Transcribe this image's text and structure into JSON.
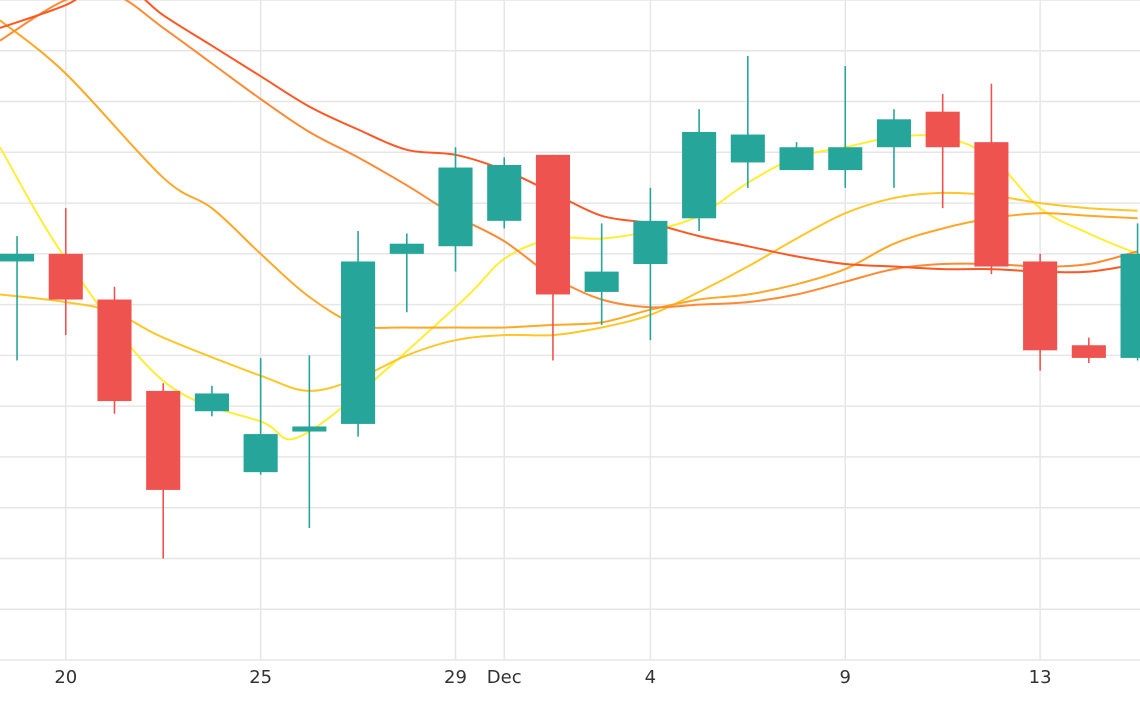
{
  "chart_data": {
    "type": "candlestick",
    "x_ticks": [
      {
        "pos": 0,
        "label": "20"
      },
      {
        "pos": 4,
        "label": "25"
      },
      {
        "pos": 8,
        "label": "29"
      },
      {
        "pos": 9,
        "label": "Dec"
      },
      {
        "pos": 12,
        "label": "4"
      },
      {
        "pos": 16,
        "label": "9"
      },
      {
        "pos": 20,
        "label": "13"
      }
    ],
    "ylim": [
      0,
      13
    ],
    "x_range": [
      -1.35,
      22.05
    ],
    "grid": true,
    "colors": {
      "up": "#26a69a",
      "down": "#ef5350"
    },
    "candles": [
      {
        "i": -1,
        "o": 7.85,
        "h": 8.35,
        "l": 5.9,
        "c": 8.0
      },
      {
        "i": 0,
        "o": 8.0,
        "h": 8.9,
        "l": 6.4,
        "c": 7.1
      },
      {
        "i": 1,
        "o": 7.1,
        "h": 7.35,
        "l": 4.85,
        "c": 5.1
      },
      {
        "i": 2,
        "o": 5.3,
        "h": 5.45,
        "l": 2.0,
        "c": 3.35
      },
      {
        "i": 3,
        "o": 4.9,
        "h": 5.4,
        "l": 4.8,
        "c": 5.25
      },
      {
        "i": 4,
        "o": 3.7,
        "h": 5.95,
        "l": 3.65,
        "c": 4.45
      },
      {
        "i": 5,
        "o": 4.5,
        "h": 6.0,
        "l": 2.6,
        "c": 4.6
      },
      {
        "i": 6,
        "o": 4.65,
        "h": 8.45,
        "l": 4.4,
        "c": 7.85
      },
      {
        "i": 7,
        "o": 8.0,
        "h": 8.4,
        "l": 6.85,
        "c": 8.2
      },
      {
        "i": 8,
        "o": 8.15,
        "h": 10.1,
        "l": 7.65,
        "c": 9.7
      },
      {
        "i": 9,
        "o": 8.65,
        "h": 9.9,
        "l": 8.5,
        "c": 9.75
      },
      {
        "i": 10,
        "o": 9.95,
        "h": 9.95,
        "l": 5.9,
        "c": 7.2
      },
      {
        "i": 11,
        "o": 7.25,
        "h": 8.6,
        "l": 6.6,
        "c": 7.65
      },
      {
        "i": 12,
        "o": 7.8,
        "h": 9.3,
        "l": 6.3,
        "c": 8.65
      },
      {
        "i": 13,
        "o": 8.7,
        "h": 10.85,
        "l": 8.45,
        "c": 10.4
      },
      {
        "i": 14,
        "o": 9.8,
        "h": 11.9,
        "l": 9.3,
        "c": 10.35
      },
      {
        "i": 15,
        "o": 9.65,
        "h": 10.2,
        "l": 9.65,
        "c": 10.1
      },
      {
        "i": 16,
        "o": 9.65,
        "h": 11.7,
        "l": 9.3,
        "c": 10.1
      },
      {
        "i": 17,
        "o": 10.1,
        "h": 10.85,
        "l": 9.3,
        "c": 10.65
      },
      {
        "i": 18,
        "o": 10.8,
        "h": 11.15,
        "l": 8.9,
        "c": 10.1
      },
      {
        "i": 19,
        "o": 10.2,
        "h": 11.35,
        "l": 7.6,
        "c": 7.75
      },
      {
        "i": 20,
        "o": 7.85,
        "h": 8.0,
        "l": 5.7,
        "c": 6.1
      },
      {
        "i": 21,
        "o": 6.2,
        "h": 6.35,
        "l": 5.85,
        "c": 5.95
      },
      {
        "i": 22,
        "o": 5.95,
        "h": 8.6,
        "l": 5.9,
        "c": 8.0
      }
    ],
    "series": [
      {
        "color": "#ffee33",
        "points": [
          [
            -1.35,
            10.1
          ],
          [
            0,
            7.9
          ],
          [
            2,
            5.5
          ],
          [
            4,
            4.7
          ],
          [
            5,
            4.5
          ],
          [
            8,
            6.95
          ],
          [
            9,
            7.9
          ],
          [
            10,
            8.3
          ],
          [
            11,
            8.3
          ],
          [
            12,
            8.45
          ],
          [
            13,
            8.75
          ],
          [
            14,
            9.4
          ],
          [
            15,
            9.9
          ],
          [
            16,
            10.1
          ],
          [
            17,
            10.3
          ],
          [
            18,
            10.3
          ],
          [
            19,
            9.9
          ],
          [
            20,
            8.9
          ],
          [
            21,
            8.4
          ],
          [
            22,
            8.0
          ]
        ]
      },
      {
        "color": "#ffc629",
        "points": [
          [
            -1.35,
            7.2
          ],
          [
            0,
            7.05
          ],
          [
            1,
            6.85
          ],
          [
            2,
            6.35
          ],
          [
            4,
            5.6
          ],
          [
            5,
            5.3
          ],
          [
            6,
            5.55
          ],
          [
            7,
            6.0
          ],
          [
            8,
            6.3
          ],
          [
            9,
            6.4
          ],
          [
            10,
            6.4
          ],
          [
            11,
            6.55
          ],
          [
            12,
            6.8
          ],
          [
            13,
            7.25
          ],
          [
            14,
            7.75
          ],
          [
            15,
            8.3
          ],
          [
            16,
            8.8
          ],
          [
            17,
            9.1
          ],
          [
            18,
            9.2
          ],
          [
            19,
            9.15
          ],
          [
            20,
            9.0
          ],
          [
            21,
            8.9
          ],
          [
            22,
            8.85
          ]
        ]
      },
      {
        "color": "#ffa726",
        "points": [
          [
            -1.35,
            12.6
          ],
          [
            0,
            11.55
          ],
          [
            2,
            9.5
          ],
          [
            3,
            8.9
          ],
          [
            4,
            8.0
          ],
          [
            5,
            7.15
          ],
          [
            6,
            6.6
          ],
          [
            7,
            6.55
          ],
          [
            8,
            6.55
          ],
          [
            9,
            6.55
          ],
          [
            10,
            6.6
          ],
          [
            11,
            6.65
          ],
          [
            12,
            6.9
          ],
          [
            13,
            7.1
          ],
          [
            14,
            7.2
          ],
          [
            15,
            7.4
          ],
          [
            16,
            7.7
          ],
          [
            17,
            8.2
          ],
          [
            18,
            8.5
          ],
          [
            19,
            8.7
          ],
          [
            20,
            8.8
          ],
          [
            21,
            8.75
          ],
          [
            22,
            8.7
          ]
        ]
      },
      {
        "color": "#ff8a33",
        "points": [
          [
            -1.35,
            12.2
          ],
          [
            0,
            13.0
          ],
          [
            1,
            13.1
          ],
          [
            2,
            12.45
          ],
          [
            3,
            11.75
          ],
          [
            4,
            11.05
          ],
          [
            5,
            10.4
          ],
          [
            6,
            9.9
          ],
          [
            7,
            9.35
          ],
          [
            8,
            8.75
          ],
          [
            9,
            8.25
          ],
          [
            10,
            7.55
          ],
          [
            11,
            7.1
          ],
          [
            12,
            6.95
          ],
          [
            13,
            7.0
          ],
          [
            14,
            7.05
          ],
          [
            15,
            7.2
          ],
          [
            16,
            7.45
          ],
          [
            17,
            7.7
          ],
          [
            18,
            7.8
          ],
          [
            19,
            7.8
          ],
          [
            20,
            7.75
          ],
          [
            21,
            7.8
          ],
          [
            22,
            8.05
          ]
        ]
      },
      {
        "color": "#ff5722",
        "points": [
          [
            -1.35,
            12.45
          ],
          [
            0,
            12.9
          ],
          [
            1,
            13.4
          ],
          [
            2,
            12.7
          ],
          [
            3,
            12.1
          ],
          [
            4,
            11.5
          ],
          [
            5,
            10.9
          ],
          [
            6,
            10.45
          ],
          [
            7,
            10.05
          ],
          [
            8,
            9.95
          ],
          [
            9,
            9.65
          ],
          [
            10,
            9.2
          ],
          [
            11,
            8.75
          ],
          [
            12,
            8.6
          ],
          [
            13,
            8.35
          ],
          [
            14,
            8.15
          ],
          [
            15,
            7.95
          ],
          [
            16,
            7.8
          ],
          [
            17,
            7.75
          ],
          [
            18,
            7.7
          ],
          [
            19,
            7.7
          ],
          [
            20,
            7.65
          ],
          [
            21,
            7.65
          ],
          [
            22,
            7.8
          ]
        ]
      }
    ]
  }
}
